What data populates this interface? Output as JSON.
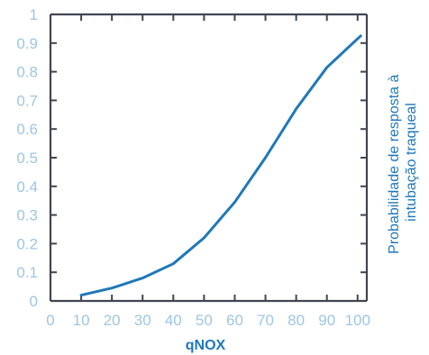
{
  "chart_data": {
    "type": "line",
    "xlabel": "qNOX",
    "ylabel": [
      "Probabilidade de resposta à",
      "intubação traqueal"
    ],
    "x_ticks": [
      "0",
      "10",
      "20",
      "30",
      "40",
      "50",
      "60",
      "70",
      "80",
      "90",
      "100"
    ],
    "y_ticks": [
      "0",
      "0.1",
      "0.2",
      "0.3",
      "0.4",
      "0.5",
      "0.6",
      "0.7",
      "0.8",
      "0.9",
      "1"
    ],
    "xlim": [
      0,
      103
    ],
    "ylim": [
      0,
      1
    ],
    "grid": false,
    "series": [
      {
        "x": [
          10,
          20,
          30,
          40,
          50,
          60,
          70,
          80,
          90,
          101
        ],
        "y": [
          0.02,
          0.045,
          0.08,
          0.13,
          0.22,
          0.345,
          0.5,
          0.67,
          0.815,
          0.925
        ]
      }
    ]
  },
  "colors": {
    "line": "#1f78b8",
    "axis": "#404650",
    "tick_label": "#9dc6e4",
    "axis_title": "#1f78b8"
  }
}
